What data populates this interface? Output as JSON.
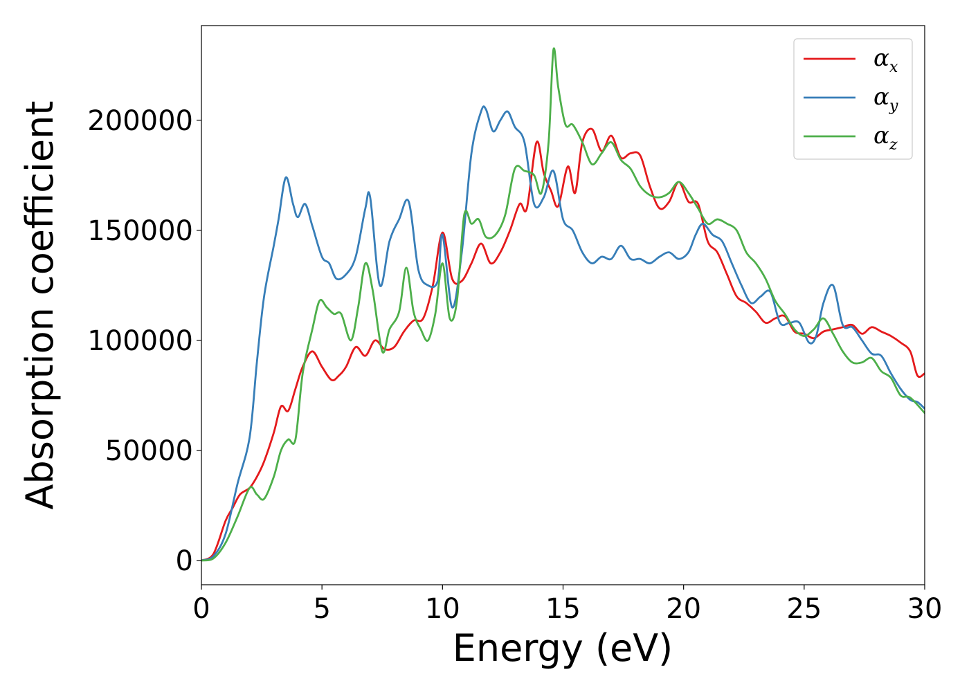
{
  "chart_data": {
    "type": "line",
    "xlabel": "Energy (eV)",
    "ylabel": "Absorption coefficient",
    "xlim": [
      0,
      30
    ],
    "ylim": [
      -11000,
      243000
    ],
    "xticks": [
      0,
      5,
      10,
      15,
      20,
      25,
      30
    ],
    "yticks": [
      0,
      50000,
      100000,
      150000,
      200000
    ],
    "xtick_labels": [
      "0",
      "5",
      "10",
      "15",
      "20",
      "25",
      "30"
    ],
    "ytick_labels": [
      "0",
      "50000",
      "100000",
      "150000",
      "200000"
    ],
    "grid": false,
    "legend_position": "top-right",
    "series": [
      {
        "name": "αx",
        "legend_main": "α",
        "legend_sub": "x",
        "color": "#e41a1c",
        "x": [
          0,
          0.5,
          1.0,
          1.3,
          1.6,
          2.0,
          2.3,
          2.6,
          3.0,
          3.3,
          3.6,
          3.9,
          4.2,
          4.6,
          5.0,
          5.4,
          5.7,
          6.0,
          6.4,
          6.8,
          7.2,
          7.6,
          8.0,
          8.4,
          8.8,
          9.2,
          9.6,
          10.0,
          10.4,
          10.8,
          11.2,
          11.6,
          12.0,
          12.4,
          12.8,
          13.2,
          13.5,
          13.9,
          14.2,
          14.5,
          14.8,
          15.2,
          15.5,
          15.8,
          16.2,
          16.6,
          17.0,
          17.4,
          17.8,
          18.2,
          18.6,
          19.0,
          19.4,
          19.8,
          20.2,
          20.6,
          21.0,
          21.4,
          21.8,
          22.2,
          22.6,
          23.0,
          23.4,
          23.8,
          24.2,
          24.6,
          25.0,
          25.4,
          25.8,
          26.2,
          26.6,
          27.0,
          27.4,
          27.8,
          28.2,
          28.6,
          29.0,
          29.4,
          29.7,
          30.0
        ],
        "y": [
          0,
          3000,
          18000,
          24000,
          30000,
          33000,
          38000,
          45000,
          58000,
          70000,
          68000,
          78000,
          88000,
          95000,
          88000,
          82000,
          84000,
          88000,
          97000,
          93000,
          100000,
          96000,
          97000,
          104000,
          109000,
          110000,
          125000,
          149000,
          128000,
          127000,
          135000,
          144000,
          135000,
          140000,
          150000,
          162000,
          160000,
          190000,
          176000,
          168000,
          161000,
          179000,
          167000,
          190000,
          196000,
          186000,
          193000,
          183000,
          185000,
          184000,
          170000,
          160000,
          163000,
          172000,
          163000,
          162000,
          145000,
          140000,
          130000,
          120000,
          117000,
          113000,
          108000,
          110000,
          111000,
          104000,
          103000,
          101000,
          104000,
          105000,
          106000,
          107000,
          103000,
          106000,
          104000,
          102000,
          99000,
          95000,
          84000,
          85000
        ]
      },
      {
        "name": "αy",
        "legend_main": "α",
        "legend_sub": "y",
        "color": "#377eb8",
        "x": [
          0,
          0.5,
          1.0,
          1.5,
          2.0,
          2.3,
          2.6,
          3.0,
          3.2,
          3.5,
          3.8,
          4.0,
          4.3,
          4.6,
          5.0,
          5.3,
          5.6,
          6.0,
          6.4,
          6.8,
          7.0,
          7.4,
          7.8,
          8.2,
          8.6,
          9.0,
          9.4,
          9.8,
          10.0,
          10.4,
          10.8,
          11.2,
          11.6,
          11.8,
          12.1,
          12.4,
          12.7,
          13.0,
          13.4,
          13.8,
          14.2,
          14.6,
          15.0,
          15.4,
          15.8,
          16.2,
          16.6,
          17.0,
          17.4,
          17.8,
          18.2,
          18.6,
          19.0,
          19.4,
          19.8,
          20.2,
          20.5,
          20.8,
          21.2,
          21.6,
          22.0,
          22.4,
          22.8,
          23.2,
          23.6,
          24.0,
          24.4,
          24.8,
          25.2,
          25.5,
          25.8,
          26.2,
          26.6,
          27.0,
          27.4,
          27.8,
          28.2,
          28.6,
          29.0,
          29.4,
          29.7,
          30.0
        ],
        "y": [
          0,
          2000,
          12000,
          35000,
          56000,
          90000,
          120000,
          143000,
          155000,
          174000,
          162000,
          156000,
          162000,
          152000,
          138000,
          135000,
          128000,
          130000,
          138000,
          160000,
          165000,
          125000,
          145000,
          155000,
          163000,
          132000,
          125000,
          127000,
          148000,
          115000,
          140000,
          185000,
          204000,
          205000,
          195000,
          200000,
          204000,
          197000,
          190000,
          162000,
          165000,
          177000,
          155000,
          150000,
          140000,
          135000,
          138000,
          137000,
          143000,
          137000,
          137000,
          135000,
          138000,
          140000,
          137000,
          140000,
          148000,
          153000,
          148000,
          145000,
          135000,
          125000,
          117000,
          120000,
          122000,
          108000,
          108000,
          108000,
          99000,
          102000,
          117000,
          125000,
          107000,
          106000,
          100000,
          94000,
          93000,
          85000,
          78000,
          73000,
          72000,
          69000
        ]
      },
      {
        "name": "αz",
        "legend_main": "α",
        "legend_sub": "z",
        "color": "#4daf4a",
        "x": [
          0,
          0.5,
          1.0,
          1.5,
          2.0,
          2.3,
          2.6,
          3.0,
          3.3,
          3.6,
          3.9,
          4.2,
          4.6,
          4.9,
          5.2,
          5.5,
          5.8,
          6.2,
          6.5,
          6.8,
          7.1,
          7.5,
          7.8,
          8.2,
          8.5,
          8.8,
          9.1,
          9.4,
          9.7,
          10.0,
          10.3,
          10.6,
          10.9,
          11.2,
          11.5,
          11.8,
          12.2,
          12.6,
          13.0,
          13.4,
          13.8,
          14.1,
          14.4,
          14.6,
          14.8,
          15.1,
          15.4,
          15.8,
          16.2,
          16.6,
          17.0,
          17.4,
          17.8,
          18.2,
          18.6,
          19.0,
          19.4,
          19.8,
          20.2,
          20.6,
          21.0,
          21.4,
          21.8,
          22.2,
          22.6,
          23.0,
          23.4,
          23.8,
          24.2,
          24.6,
          25.0,
          25.4,
          25.8,
          26.2,
          26.6,
          27.0,
          27.4,
          27.8,
          28.2,
          28.6,
          29.0,
          29.4,
          30.0
        ],
        "y": [
          0,
          1000,
          8000,
          20000,
          33000,
          30000,
          28000,
          38000,
          50000,
          55000,
          55000,
          85000,
          105000,
          118000,
          115000,
          112000,
          112000,
          100000,
          115000,
          135000,
          123000,
          95000,
          105000,
          113000,
          133000,
          113000,
          105000,
          100000,
          112000,
          135000,
          110000,
          118000,
          157000,
          153000,
          155000,
          147000,
          148000,
          157000,
          178000,
          177000,
          175000,
          167000,
          190000,
          232000,
          215000,
          198000,
          198000,
          190000,
          180000,
          185000,
          190000,
          182000,
          178000,
          170000,
          166000,
          165000,
          167000,
          172000,
          167000,
          160000,
          153000,
          155000,
          153000,
          150000,
          140000,
          135000,
          128000,
          118000,
          112000,
          105000,
          102000,
          105000,
          110000,
          103000,
          95000,
          90000,
          90000,
          92000,
          86000,
          83000,
          75000,
          74000,
          67000
        ]
      }
    ]
  }
}
